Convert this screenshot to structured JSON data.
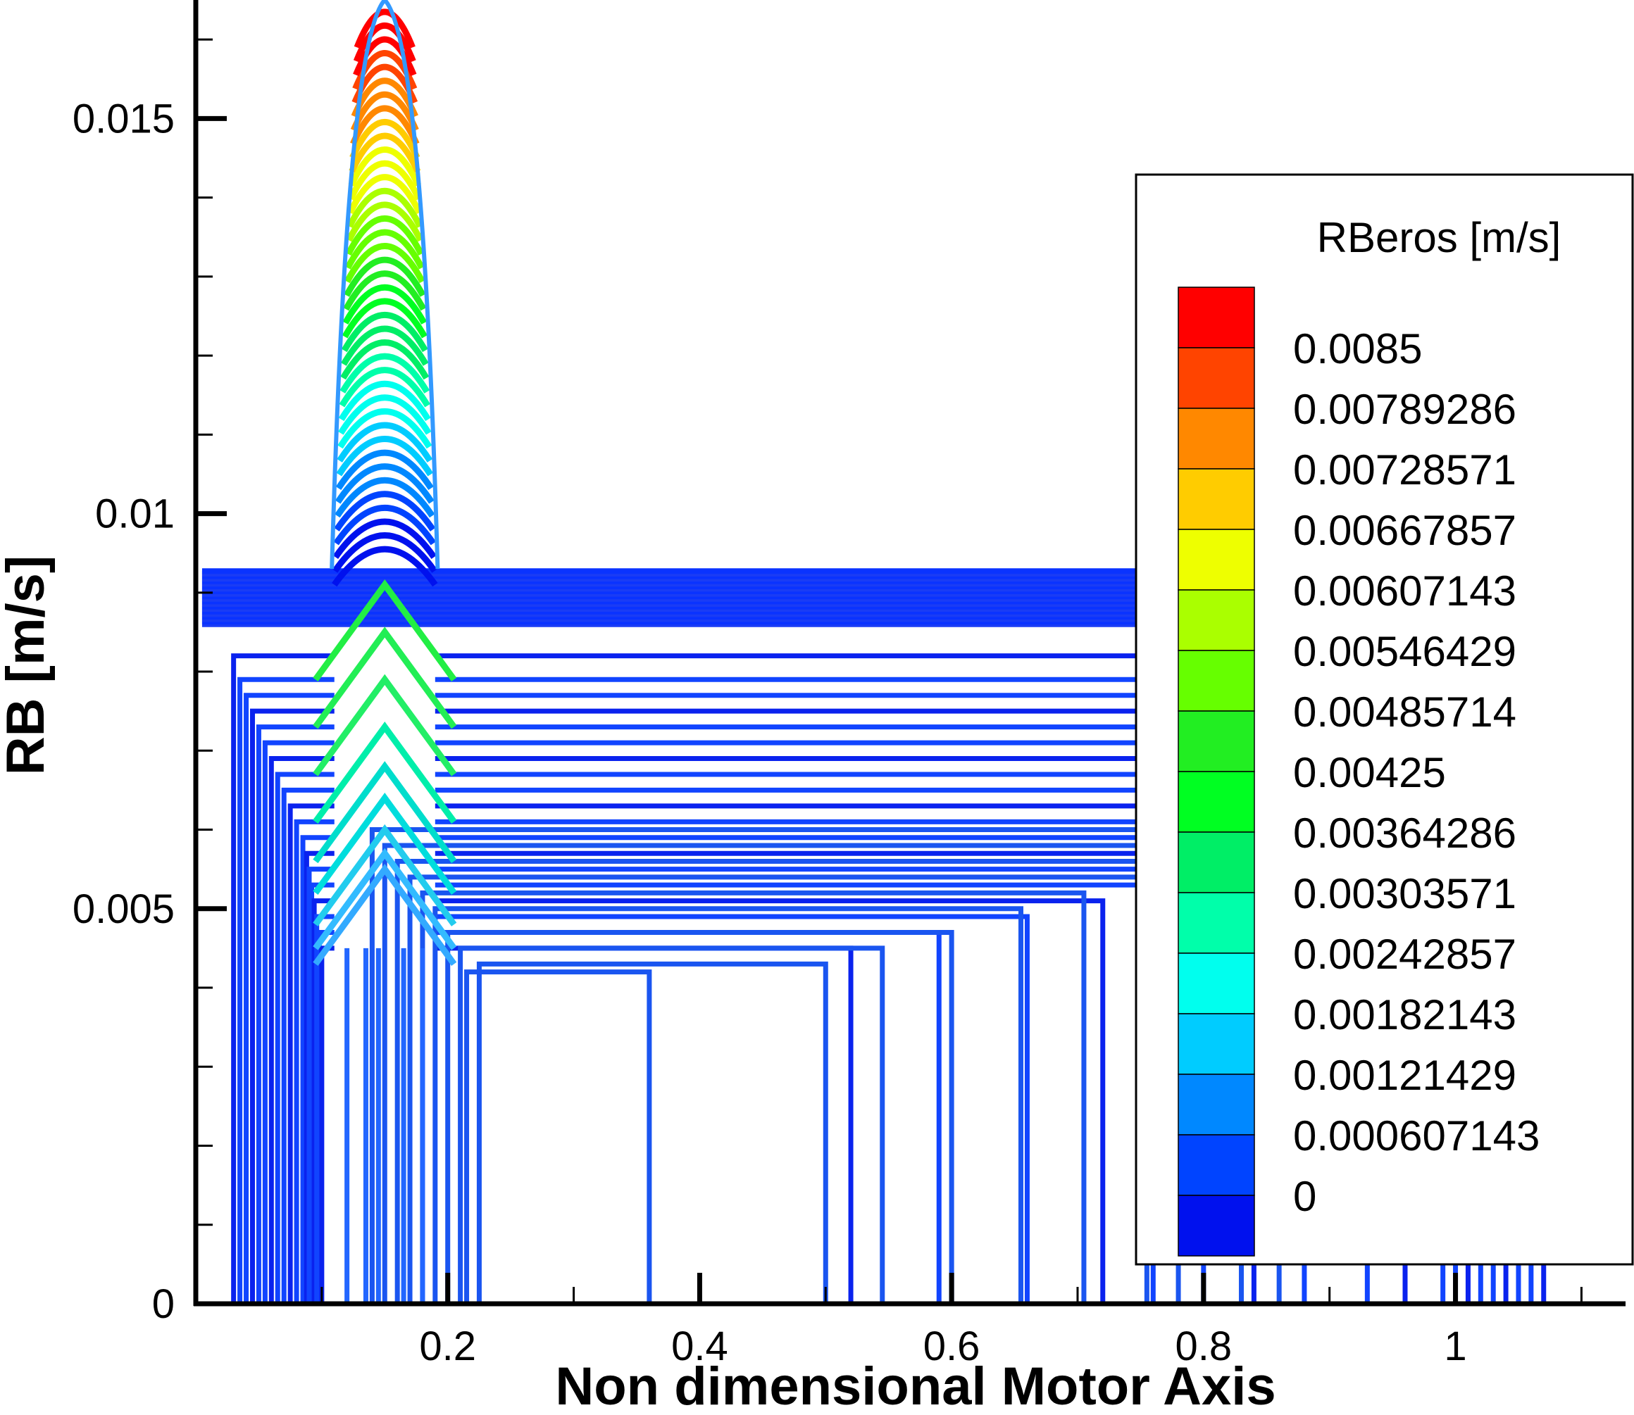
{
  "chart_data": {
    "type": "line",
    "title": "",
    "xlabel": "Non dimensional Motor Axis",
    "ylabel": "RB [m/s]",
    "xlim": [
      0.0,
      1.135
    ],
    "ylim": [
      0.0,
      0.0165
    ],
    "x_ticks": [
      {
        "value": 0.2,
        "label": "0.2"
      },
      {
        "value": 0.4,
        "label": "0.4"
      },
      {
        "value": 0.6,
        "label": "0.6"
      },
      {
        "value": 0.8,
        "label": "0.8"
      },
      {
        "value": 1.0,
        "label": "1"
      }
    ],
    "y_ticks": [
      {
        "value": 0.0,
        "label": "0"
      },
      {
        "value": 0.005,
        "label": "0.005"
      },
      {
        "value": 0.01,
        "label": "0.01"
      },
      {
        "value": 0.015,
        "label": "0.015"
      }
    ],
    "grid": false,
    "legend": {
      "title": "RBeros [m/s]",
      "placement": "right",
      "levels": [
        {
          "label": "0.0085",
          "color": "#ff0000"
        },
        {
          "label": "0.00789286",
          "color": "#ff4400"
        },
        {
          "label": "0.00728571",
          "color": "#ff8800"
        },
        {
          "label": "0.00667857",
          "color": "#ffcc00"
        },
        {
          "label": "0.00607143",
          "color": "#eeff00"
        },
        {
          "label": "0.00546429",
          "color": "#aaff00"
        },
        {
          "label": "0.00485714",
          "color": "#66ff00"
        },
        {
          "label": "0.00425",
          "color": "#22ee22"
        },
        {
          "label": "0.00364286",
          "color": "#00ff22"
        },
        {
          "label": "0.00303571",
          "color": "#00ee66"
        },
        {
          "label": "0.00242857",
          "color": "#00ffaa"
        },
        {
          "label": "0.00182143",
          "color": "#00ffee"
        },
        {
          "label": "0.00121429",
          "color": "#00ccff"
        },
        {
          "label": "0.000607143",
          "color": "#0088ff"
        },
        {
          "label": "0",
          "color": "#0044ff"
        },
        {
          "label": "",
          "color": "#0011ee"
        }
      ]
    },
    "peak": {
      "x_start": 0.11,
      "x_center": 0.15,
      "x_end": 0.19,
      "y_max": 0.0165
    },
    "curves_description_free": true
  }
}
